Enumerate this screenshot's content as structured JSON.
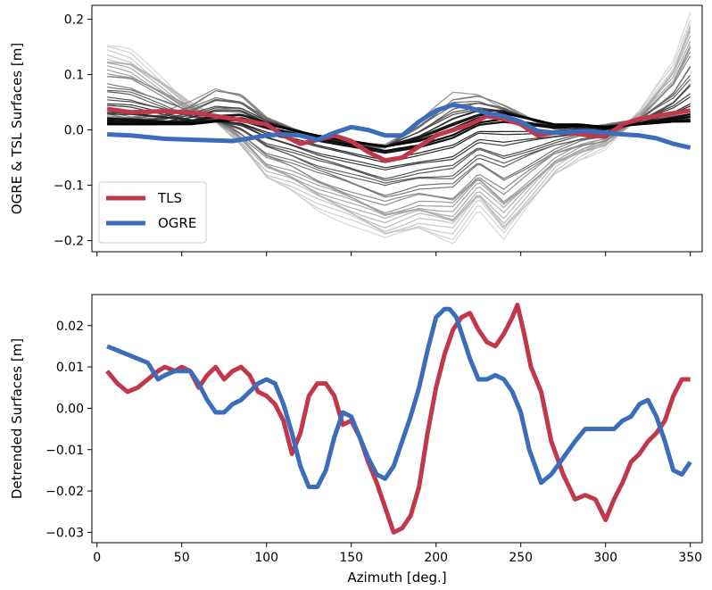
{
  "colors": {
    "tls": "#c0384a",
    "ogre": "#3b6dba",
    "background_light": "#d8d8d8",
    "background_dark": "#000000"
  },
  "chart_data": [
    {
      "type": "line",
      "xlabel": "",
      "ylabel": "OGRE & TSL Surfaces [m]",
      "xlim": [
        -3,
        357
      ],
      "ylim": [
        -0.22,
        0.225
      ],
      "yticks": [
        -0.2,
        -0.1,
        0.0,
        0.1,
        0.2
      ],
      "ytick_labels": [
        "−0.2",
        "−0.1",
        "0.0",
        "0.1",
        "0.2"
      ],
      "xticks": [
        0,
        50,
        100,
        150,
        200,
        250,
        300,
        350
      ],
      "show_x_tick_labels": false,
      "grid": false,
      "legend_position": "lower-left",
      "background_ensemble": {
        "description_of_style": "grayscale family of surfaces from light gray to black",
        "count": 40,
        "x": [
          6,
          20,
          40,
          55,
          70,
          85,
          100,
          115,
          130,
          150,
          170,
          190,
          210,
          225,
          240,
          255,
          270,
          285,
          300,
          320,
          340,
          350
        ],
        "lightest_profile": [
          0.15,
          0.14,
          0.09,
          0.05,
          0.02,
          -0.03,
          -0.09,
          -0.11,
          -0.14,
          -0.17,
          -0.2,
          -0.18,
          -0.2,
          -0.14,
          -0.2,
          -0.14,
          -0.08,
          -0.05,
          -0.03,
          0.03,
          0.12,
          0.21
        ],
        "darkest_profile": [
          0.01,
          0.01,
          0.01,
          0.01,
          0.015,
          0.02,
          0.01,
          0.0,
          -0.01,
          -0.02,
          -0.03,
          -0.02,
          0.0,
          0.02,
          0.03,
          0.02,
          0.01,
          0.01,
          0.005,
          0.01,
          0.015,
          0.015
        ],
        "upper_bump_profile": [
          0.04,
          0.03,
          0.04,
          0.07,
          0.11,
          0.09,
          0.03,
          0.0,
          -0.02,
          -0.03,
          -0.03,
          0.03,
          0.1,
          0.09,
          0.05,
          0.02,
          0.0,
          0.0,
          0.01,
          0.02,
          0.03,
          0.04
        ]
      },
      "series": [
        {
          "name": "TLS",
          "x": [
            6,
            20,
            40,
            60,
            80,
            100,
            110,
            120,
            130,
            140,
            150,
            160,
            170,
            180,
            190,
            200,
            210,
            220,
            230,
            240,
            250,
            260,
            270,
            280,
            290,
            300,
            310,
            320,
            330,
            340,
            350
          ],
          "y": [
            0.038,
            0.032,
            0.034,
            0.03,
            0.02,
            0.01,
            -0.01,
            -0.025,
            -0.018,
            -0.01,
            -0.02,
            -0.04,
            -0.055,
            -0.05,
            -0.03,
            -0.01,
            0.0,
            0.01,
            0.025,
            0.02,
            0.01,
            -0.01,
            -0.005,
            -0.005,
            -0.01,
            -0.012,
            0.01,
            0.02,
            0.025,
            0.03,
            0.035
          ]
        },
        {
          "name": "OGRE",
          "x": [
            6,
            20,
            40,
            60,
            80,
            100,
            110,
            120,
            130,
            140,
            150,
            160,
            170,
            180,
            190,
            200,
            210,
            220,
            230,
            240,
            250,
            260,
            270,
            280,
            290,
            300,
            310,
            320,
            330,
            340,
            350
          ],
          "y": [
            -0.008,
            -0.01,
            -0.016,
            -0.018,
            -0.02,
            -0.01,
            -0.008,
            -0.01,
            -0.018,
            -0.005,
            0.005,
            0.0,
            -0.01,
            -0.01,
            0.015,
            0.035,
            0.045,
            0.04,
            0.03,
            0.025,
            0.015,
            -0.002,
            -0.005,
            -0.003,
            -0.002,
            -0.005,
            -0.008,
            -0.01,
            -0.015,
            -0.025,
            -0.032
          ]
        }
      ]
    },
    {
      "type": "line",
      "xlabel": "Azimuth [deg.]",
      "ylabel": "Detrended Surfaces [m]",
      "xlim": [
        -3,
        357
      ],
      "ylim": [
        -0.0325,
        0.0275
      ],
      "yticks": [
        -0.03,
        -0.02,
        -0.01,
        0.0,
        0.01,
        0.02
      ],
      "ytick_labels": [
        "−0.03",
        "−0.02",
        "−0.01",
        "0.00",
        "0.01",
        "0.02"
      ],
      "xticks": [
        0,
        50,
        100,
        150,
        200,
        250,
        300,
        350
      ],
      "xtick_labels": [
        "0",
        "50",
        "100",
        "150",
        "200",
        "250",
        "300",
        "350"
      ],
      "grid": false,
      "series": [
        {
          "name": "TLS",
          "x": [
            6,
            12,
            18,
            24,
            30,
            36,
            40,
            46,
            50,
            55,
            60,
            65,
            70,
            75,
            80,
            85,
            90,
            95,
            100,
            105,
            110,
            115,
            120,
            125,
            130,
            135,
            140,
            145,
            150,
            155,
            160,
            165,
            170,
            175,
            180,
            185,
            190,
            195,
            200,
            205,
            210,
            215,
            220,
            225,
            230,
            235,
            240,
            245,
            248,
            252,
            256,
            262,
            268,
            275,
            282,
            288,
            294,
            300,
            305,
            310,
            315,
            320,
            325,
            330,
            335,
            340,
            345,
            350
          ],
          "y": [
            0.009,
            0.006,
            0.004,
            0.005,
            0.007,
            0.009,
            0.01,
            0.009,
            0.01,
            0.009,
            0.005,
            0.008,
            0.01,
            0.007,
            0.009,
            0.01,
            0.008,
            0.004,
            0.003,
            0.001,
            -0.003,
            -0.011,
            -0.006,
            0.003,
            0.006,
            0.006,
            0.003,
            -0.004,
            -0.003,
            -0.007,
            -0.013,
            -0.018,
            -0.024,
            -0.03,
            -0.029,
            -0.026,
            -0.019,
            -0.006,
            0.005,
            0.013,
            0.019,
            0.022,
            0.023,
            0.019,
            0.016,
            0.015,
            0.018,
            0.022,
            0.025,
            0.018,
            0.01,
            0.004,
            -0.008,
            -0.016,
            -0.022,
            -0.021,
            -0.022,
            -0.027,
            -0.022,
            -0.018,
            -0.013,
            -0.011,
            -0.008,
            -0.006,
            -0.003,
            0.003,
            0.007,
            0.007
          ]
        },
        {
          "name": "OGRE",
          "x": [
            6,
            12,
            18,
            24,
            30,
            36,
            40,
            46,
            50,
            55,
            60,
            65,
            70,
            75,
            80,
            85,
            90,
            95,
            100,
            105,
            110,
            115,
            120,
            125,
            130,
            135,
            140,
            145,
            150,
            155,
            160,
            165,
            170,
            175,
            180,
            185,
            190,
            195,
            200,
            205,
            208,
            212,
            216,
            220,
            225,
            230,
            235,
            240,
            245,
            250,
            255,
            262,
            268,
            275,
            282,
            288,
            294,
            300,
            305,
            310,
            315,
            320,
            325,
            330,
            335,
            340,
            345,
            350
          ],
          "y": [
            0.015,
            0.014,
            0.013,
            0.012,
            0.011,
            0.007,
            0.008,
            0.009,
            0.009,
            0.009,
            0.006,
            0.002,
            -0.001,
            -0.001,
            0.001,
            0.002,
            0.004,
            0.006,
            0.007,
            0.006,
            0.001,
            -0.006,
            -0.014,
            -0.019,
            -0.019,
            -0.015,
            -0.007,
            -0.001,
            -0.002,
            -0.007,
            -0.012,
            -0.016,
            -0.017,
            -0.014,
            -0.008,
            -0.002,
            0.005,
            0.014,
            0.022,
            0.024,
            0.024,
            0.022,
            0.017,
            0.012,
            0.007,
            0.007,
            0.008,
            0.007,
            0.004,
            -0.001,
            -0.01,
            -0.018,
            -0.016,
            -0.012,
            -0.008,
            -0.005,
            -0.005,
            -0.005,
            -0.005,
            -0.003,
            -0.002,
            0.001,
            0.002,
            -0.002,
            -0.008,
            -0.015,
            -0.016,
            -0.013
          ]
        }
      ]
    }
  ]
}
